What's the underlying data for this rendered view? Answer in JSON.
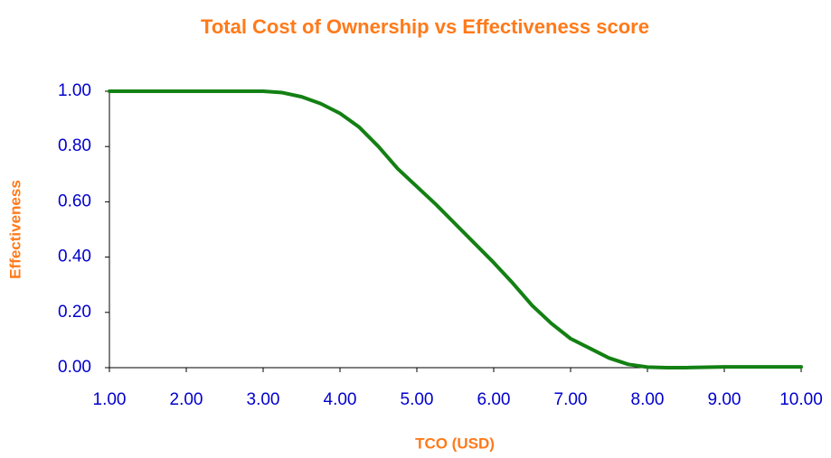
{
  "chart_data": {
    "type": "line",
    "title": "Total Cost of Ownership vs Effectiveness score",
    "x_label": "TCO (USD)",
    "y_label": "Effectiveness",
    "x": [
      1.0,
      2.0,
      2.5,
      3.0,
      3.25,
      3.5,
      3.75,
      4.0,
      4.25,
      4.5,
      4.75,
      5.0,
      5.25,
      5.5,
      5.75,
      6.0,
      6.25,
      6.5,
      6.75,
      7.0,
      7.25,
      7.5,
      7.75,
      8.0,
      8.25,
      8.5,
      9.0,
      10.0
    ],
    "series": [
      {
        "name": "Effectiveness",
        "color": "#138013",
        "values": [
          1.0,
          1.0,
          1.0,
          1.0,
          0.995,
          0.98,
          0.955,
          0.92,
          0.87,
          0.8,
          0.72,
          0.655,
          0.59,
          0.52,
          0.45,
          0.38,
          0.305,
          0.225,
          0.16,
          0.105,
          0.07,
          0.035,
          0.012,
          0.002,
          0.0,
          0.0,
          0.003,
          0.003
        ]
      }
    ],
    "xlim": [
      1,
      10
    ],
    "xticks": [
      {
        "value": 1,
        "label": "1.00"
      },
      {
        "value": 2,
        "label": "2.00"
      },
      {
        "value": 3,
        "label": "3.00"
      },
      {
        "value": 4,
        "label": "4.00"
      },
      {
        "value": 5,
        "label": "5.00"
      },
      {
        "value": 6,
        "label": "6.00"
      },
      {
        "value": 7,
        "label": "7.00"
      },
      {
        "value": 8,
        "label": "8.00"
      },
      {
        "value": 9,
        "label": "9.00"
      },
      {
        "value": 10,
        "label": "10.00"
      }
    ],
    "ylim": [
      0,
      1
    ],
    "yticks": [
      {
        "value": 0,
        "label": "0.00"
      },
      {
        "value": 0.2,
        "label": "0.20"
      },
      {
        "value": 0.4,
        "label": "0.40"
      },
      {
        "value": 0.6,
        "label": "0.60"
      },
      {
        "value": 0.8,
        "label": "0.80"
      },
      {
        "value": 1,
        "label": "1.00"
      }
    ],
    "grid": false
  }
}
